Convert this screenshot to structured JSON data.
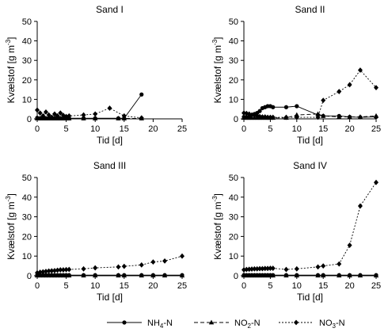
{
  "chart_data": [
    {
      "type": "line",
      "title": "Sand I",
      "xlabel": "Tid [d]",
      "ylabel": "Kvælstof [g m",
      "ylabel_sup": "-3",
      "ylabel_close": "]",
      "xlim": [
        0,
        25
      ],
      "ylim": [
        0,
        50
      ],
      "xticks": [
        0,
        5,
        10,
        15,
        20,
        25
      ],
      "yticks": [
        0,
        10,
        20,
        30,
        40,
        50
      ],
      "series": [
        {
          "name": "NH4-N",
          "style": "solid",
          "marker": "circle",
          "x": [
            0,
            0.5,
            1,
            1.5,
            2,
            2.5,
            3,
            3.5,
            4,
            4.5,
            5,
            5.5,
            8,
            10,
            14,
            15,
            18
          ],
          "y": [
            0.5,
            0.3,
            0.3,
            0.3,
            0.3,
            0.3,
            0.3,
            0.3,
            0.3,
            0.3,
            0.3,
            0.3,
            0.3,
            0.3,
            0.3,
            0.3,
            12.5
          ]
        },
        {
          "name": "NO2-N",
          "style": "dashed",
          "marker": "triangle",
          "x": [
            0,
            0.5,
            1,
            1.5,
            2,
            2.5,
            3,
            3.5,
            4,
            4.5,
            5,
            5.5,
            8,
            10,
            14,
            15,
            18
          ],
          "y": [
            0.2,
            0.2,
            0.2,
            0.2,
            0.2,
            0.2,
            0.2,
            0.2,
            0.2,
            0.2,
            0.2,
            0.2,
            0.2,
            0.2,
            0.2,
            0.2,
            0.2
          ]
        },
        {
          "name": "NO3-N",
          "style": "dotted",
          "marker": "diamond",
          "x": [
            0,
            0.5,
            1,
            1.5,
            2,
            2.5,
            3,
            3.5,
            4,
            4.5,
            5,
            5.5,
            8,
            10,
            12.5,
            15,
            18
          ],
          "y": [
            4.5,
            3.0,
            1.5,
            3.5,
            2.0,
            0.8,
            2.5,
            1.5,
            3.0,
            1.8,
            1.2,
            1.5,
            2.0,
            2.5,
            5.5,
            1.5,
            0.5
          ]
        }
      ]
    },
    {
      "type": "line",
      "title": "Sand II",
      "xlabel": "Tid [d]",
      "ylabel": "Kvælstof [g m",
      "ylabel_sup": "-3",
      "ylabel_close": "]",
      "xlim": [
        0,
        25
      ],
      "ylim": [
        0,
        50
      ],
      "xticks": [
        0,
        5,
        10,
        15,
        20,
        25
      ],
      "yticks": [
        0,
        10,
        20,
        30,
        40,
        50
      ],
      "series": [
        {
          "name": "NH4-N",
          "style": "solid",
          "marker": "circle",
          "x": [
            0,
            0.5,
            1,
            1.5,
            2,
            2.5,
            3,
            3.5,
            4,
            4.5,
            5,
            5.5,
            8,
            10,
            14,
            15,
            18,
            20,
            22,
            25
          ],
          "y": [
            1.0,
            1.0,
            1.0,
            2.0,
            2.5,
            3.0,
            4.0,
            5.5,
            6.0,
            6.5,
            6.5,
            6.0,
            6.0,
            6.5,
            2.0,
            1.5,
            1.5,
            1.0,
            0.8,
            1.0
          ]
        },
        {
          "name": "NO2-N",
          "style": "dashed",
          "marker": "triangle",
          "x": [
            0,
            0.5,
            1,
            1.5,
            2,
            2.5,
            3,
            3.5,
            4,
            4.5,
            5,
            5.5,
            8,
            10,
            14,
            15,
            18,
            20,
            22,
            25
          ],
          "y": [
            0.5,
            0.5,
            0.5,
            0.5,
            0.5,
            0.5,
            0.5,
            0.5,
            0.5,
            0.5,
            0.5,
            0.5,
            0.5,
            2.0,
            2.5,
            1.5,
            1.0,
            1.0,
            1.0,
            1.5
          ]
        },
        {
          "name": "NO3-N",
          "style": "dotted",
          "marker": "diamond",
          "x": [
            0,
            0.5,
            1,
            1.5,
            2,
            2.5,
            3,
            3.5,
            4,
            4.5,
            5,
            5.5,
            8,
            10,
            14,
            15,
            18,
            20,
            22,
            25
          ],
          "y": [
            3.0,
            2.8,
            2.5,
            2.0,
            1.8,
            1.5,
            1.2,
            1.0,
            1.0,
            0.8,
            0.8,
            0.8,
            0.8,
            0.8,
            0.8,
            9.5,
            14.0,
            17.5,
            25.0,
            16.0
          ]
        }
      ]
    },
    {
      "type": "line",
      "title": "Sand III",
      "xlabel": "Tid [d]",
      "ylabel": "Kvælstof [g m",
      "ylabel_sup": "-3",
      "ylabel_close": "]",
      "xlim": [
        0,
        25
      ],
      "ylim": [
        0,
        50
      ],
      "xticks": [
        0,
        5,
        10,
        15,
        20,
        25
      ],
      "yticks": [
        0,
        10,
        20,
        30,
        40,
        50
      ],
      "series": [
        {
          "name": "NH4-N",
          "style": "solid",
          "marker": "circle",
          "x": [
            0,
            0.5,
            1,
            1.5,
            2,
            2.5,
            3,
            3.5,
            4,
            4.5,
            5,
            5.5,
            8,
            10,
            14,
            15,
            18,
            20,
            22,
            25
          ],
          "y": [
            0.3,
            0.3,
            0.3,
            0.3,
            0.3,
            0.3,
            0.3,
            0.3,
            0.3,
            0.3,
            0.3,
            0.3,
            0.3,
            0.3,
            0.3,
            0.3,
            0.3,
            0.3,
            0.3,
            0.3
          ]
        },
        {
          "name": "NO2-N",
          "style": "dashed",
          "marker": "triangle",
          "x": [
            0,
            0.5,
            1,
            1.5,
            2,
            2.5,
            3,
            3.5,
            4,
            4.5,
            5,
            5.5,
            8,
            10,
            14,
            15,
            18,
            20,
            22,
            25
          ],
          "y": [
            0.1,
            0.1,
            0.1,
            0.1,
            0.1,
            0.1,
            0.1,
            0.1,
            0.1,
            0.1,
            0.1,
            0.1,
            0.1,
            0.1,
            0.1,
            0.1,
            0.1,
            0.1,
            0.1,
            0.1
          ]
        },
        {
          "name": "NO3-N",
          "style": "dotted",
          "marker": "diamond",
          "x": [
            0,
            0.5,
            1,
            1.5,
            2,
            2.5,
            3,
            3.5,
            4,
            4.5,
            5,
            5.5,
            8,
            10,
            14,
            15,
            18,
            20,
            22,
            25
          ],
          "y": [
            1.5,
            1.8,
            2.0,
            2.2,
            2.4,
            2.5,
            2.6,
            2.8,
            3.0,
            3.0,
            3.1,
            3.2,
            3.5,
            4.0,
            4.5,
            4.8,
            5.5,
            7.0,
            7.5,
            10.0
          ]
        }
      ]
    },
    {
      "type": "line",
      "title": "Sand IV",
      "xlabel": "Tid [d]",
      "ylabel": "Kvælstof [g m",
      "ylabel_sup": "-3",
      "ylabel_close": "]",
      "xlim": [
        0,
        25
      ],
      "ylim": [
        0,
        50
      ],
      "xticks": [
        0,
        5,
        10,
        15,
        20,
        25
      ],
      "yticks": [
        0,
        10,
        20,
        30,
        40,
        50
      ],
      "series": [
        {
          "name": "NH4-N",
          "style": "solid",
          "marker": "circle",
          "x": [
            0,
            0.5,
            1,
            1.5,
            2,
            2.5,
            3,
            3.5,
            4,
            4.5,
            5,
            5.5,
            8,
            10,
            14,
            15,
            18,
            20,
            22,
            25
          ],
          "y": [
            0.3,
            0.3,
            0.3,
            0.3,
            0.3,
            0.3,
            0.3,
            0.3,
            0.3,
            0.3,
            0.3,
            0.3,
            0.3,
            0.3,
            0.3,
            0.3,
            0.3,
            0.3,
            0.3,
            0.3
          ]
        },
        {
          "name": "NO2-N",
          "style": "dashed",
          "marker": "triangle",
          "x": [
            0,
            0.5,
            1,
            1.5,
            2,
            2.5,
            3,
            3.5,
            4,
            4.5,
            5,
            5.5,
            8,
            10,
            14,
            15,
            18,
            20,
            22,
            25
          ],
          "y": [
            0.1,
            0.1,
            0.1,
            0.1,
            0.1,
            0.1,
            0.1,
            0.1,
            0.1,
            0.1,
            0.1,
            0.1,
            0.1,
            0.1,
            0.1,
            0.1,
            0.1,
            0.1,
            0.1,
            0.1
          ]
        },
        {
          "name": "NO3-N",
          "style": "dotted",
          "marker": "diamond",
          "x": [
            0,
            0.5,
            1,
            1.5,
            2,
            2.5,
            3,
            3.5,
            4,
            4.5,
            5,
            5.5,
            8,
            10,
            14,
            15,
            18,
            20,
            22,
            25
          ],
          "y": [
            3.0,
            3.2,
            3.3,
            3.4,
            3.5,
            3.5,
            3.6,
            3.6,
            3.7,
            3.7,
            3.8,
            3.8,
            3.2,
            3.5,
            4.5,
            5.0,
            6.0,
            15.5,
            35.5,
            47.5
          ]
        }
      ]
    }
  ],
  "legend": {
    "placement": "bottom",
    "items": [
      {
        "name": "NH4-N",
        "label": "NH",
        "sub": "4",
        "suffix": "-N",
        "style": "solid",
        "marker": "circle"
      },
      {
        "name": "NO2-N",
        "label": "NO",
        "sub": "2",
        "suffix": "-N",
        "style": "dashed",
        "marker": "triangle"
      },
      {
        "name": "NO3-N",
        "label": "NO",
        "sub": "3",
        "suffix": "-N",
        "style": "dotted",
        "marker": "diamond"
      }
    ]
  },
  "colors": {
    "ink": "#000000",
    "background": "#ffffff"
  }
}
